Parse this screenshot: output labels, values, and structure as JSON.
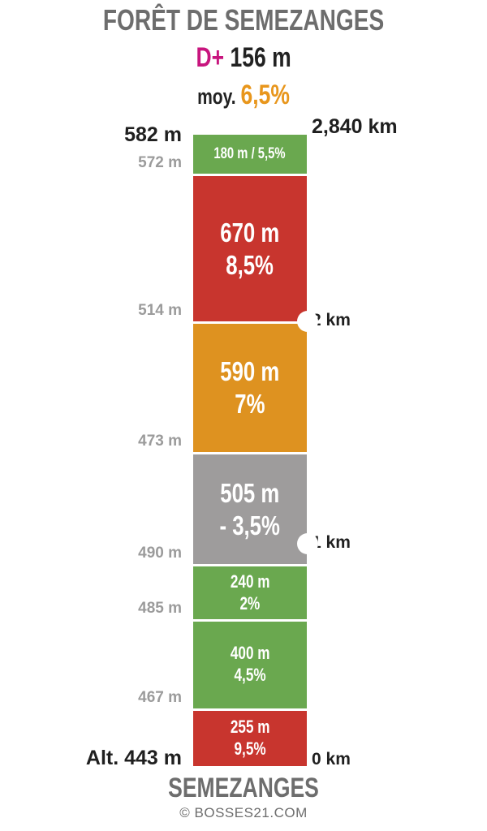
{
  "title": "FORÊT DE SEMEZANGES",
  "elevation_gain": {
    "label": "D+",
    "value": "156 m"
  },
  "average": {
    "label": "moy.",
    "value": "6,5%"
  },
  "bottom_title": "SEMEZANGES",
  "credit": "© BOSSES21.COM",
  "altitudes": [
    {
      "text": "582 m",
      "emphasis": true
    },
    {
      "text": "572 m",
      "emphasis": false
    },
    {
      "text": "514 m",
      "emphasis": false
    },
    {
      "text": "473 m",
      "emphasis": false
    },
    {
      "text": "490 m",
      "emphasis": false
    },
    {
      "text": "485 m",
      "emphasis": false
    },
    {
      "text": "467 m",
      "emphasis": false
    },
    {
      "text": "Alt. 443 m",
      "emphasis": true
    }
  ],
  "distances": [
    {
      "text": "2,840 km",
      "at_km": 2.84
    },
    {
      "text": "2 km",
      "at_km": 2.0
    },
    {
      "text": "1 km",
      "at_km": 1.0
    },
    {
      "text": "0 km",
      "at_km": 0.0
    }
  ],
  "colors": {
    "green": "#6aa84f",
    "red": "#c8352e",
    "orange": "#de9220",
    "grey": "#9e9c9c"
  },
  "chart_data": {
    "type": "bar",
    "segments_from_top": [
      {
        "length_m": 180,
        "grade": "5,5%",
        "label1": "180 m / 5,5%",
        "label2": "",
        "color": "green"
      },
      {
        "length_m": 670,
        "grade": "8,5%",
        "label1": "670 m",
        "label2": "8,5%",
        "color": "red"
      },
      {
        "length_m": 590,
        "grade": "7%",
        "label1": "590 m",
        "label2": "7%",
        "color": "orange"
      },
      {
        "length_m": 505,
        "grade": "- 3,5%",
        "label1": "505 m",
        "label2": "- 3,5%",
        "color": "grey"
      },
      {
        "length_m": 240,
        "grade": "2%",
        "label1": "240 m",
        "label2": "2%",
        "color": "green"
      },
      {
        "length_m": 400,
        "grade": "4,5%",
        "label1": "400 m",
        "label2": "4,5%",
        "color": "green"
      },
      {
        "length_m": 255,
        "grade": "9,5%",
        "label1": "255 m",
        "label2": "9,5%",
        "color": "red"
      }
    ]
  }
}
